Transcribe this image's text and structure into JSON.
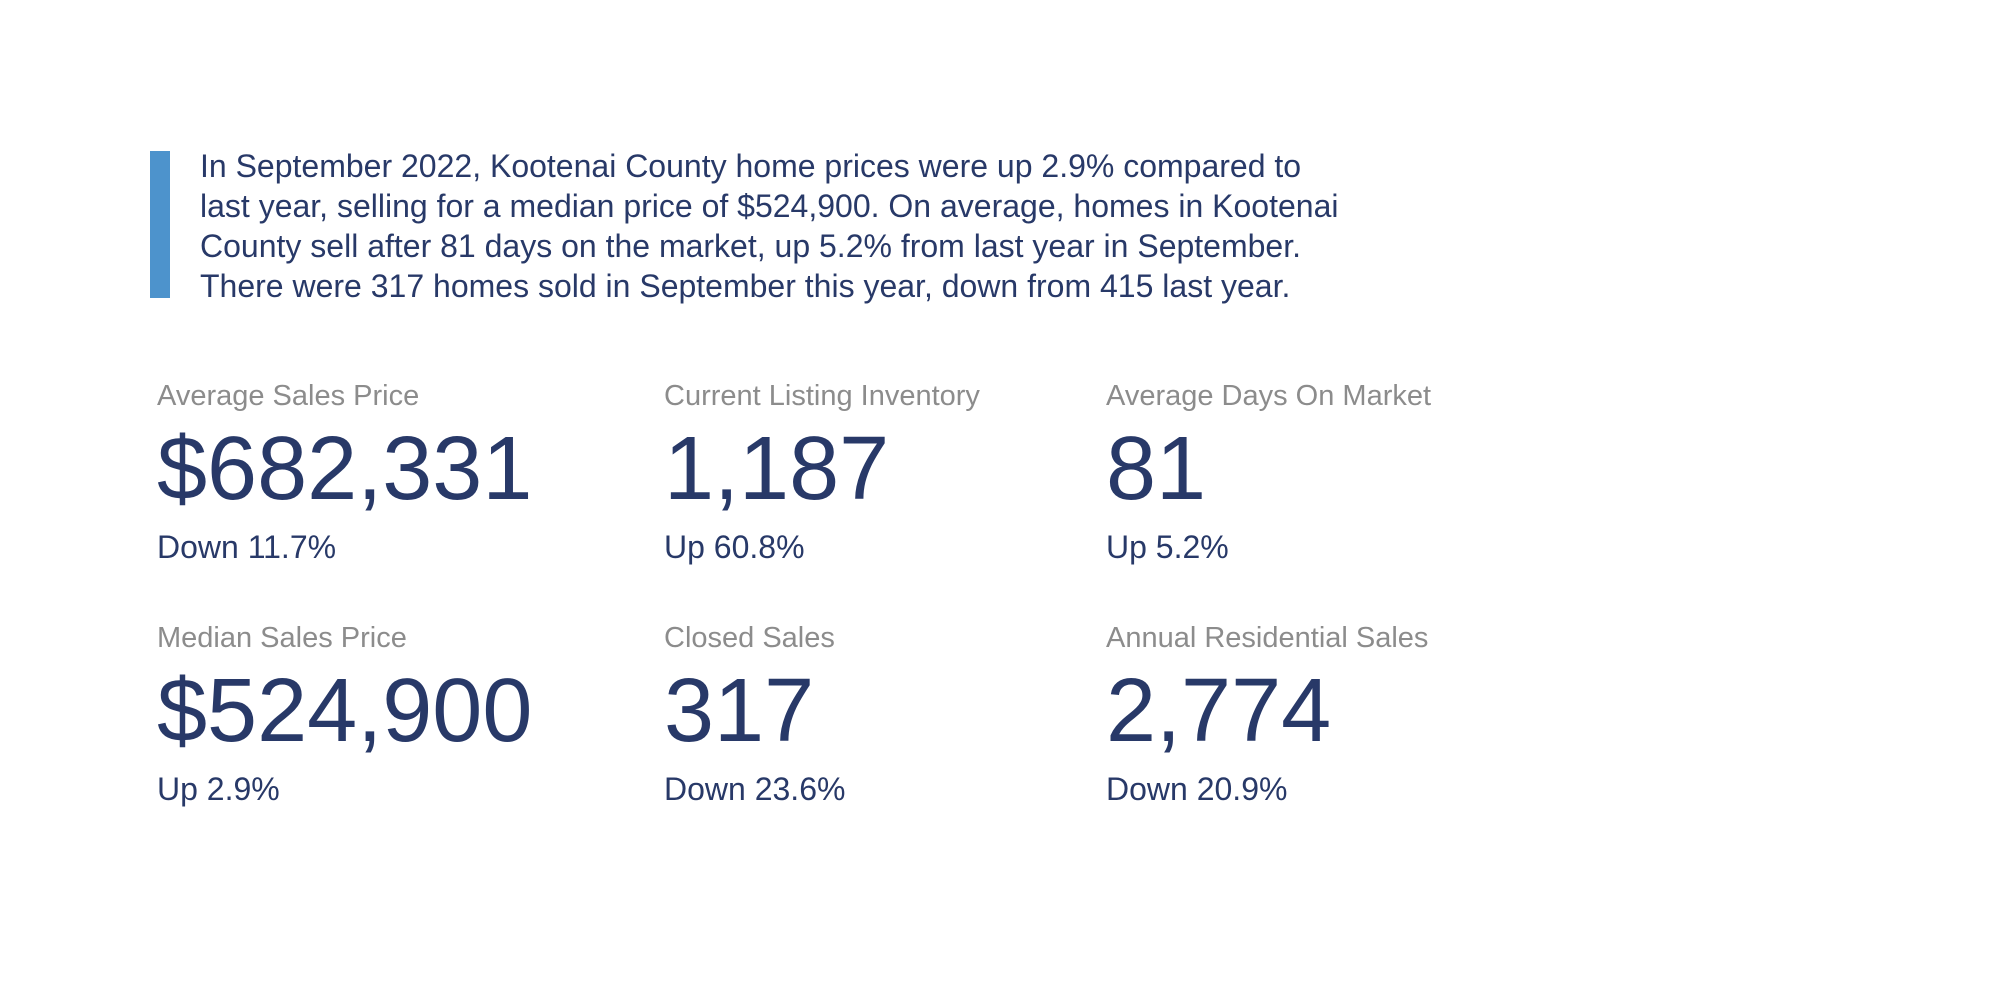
{
  "colors": {
    "background": "#ffffff",
    "accent_bar": "#4d93cc",
    "navy_text": "#283968",
    "label_gray": "#8c8c8c"
  },
  "quote": {
    "lines": [
      "In September 2022, Kootenai County home prices were up 2.9% compared to",
      "last year, selling for a median price of $524,900. On average, homes in Kootenai",
      "County sell after 81 days on the market, up 5.2% from last year in September.",
      "There were 317 homes sold in September this year, down from 415 last year."
    ]
  },
  "stats": {
    "items": [
      {
        "label": "Average Sales Price",
        "value": "$682,331",
        "change": "Down 11.7%"
      },
      {
        "label": "Current Listing Inventory",
        "value": "1,187",
        "change": "Up 60.8%"
      },
      {
        "label": "Average Days On Market",
        "value": "81",
        "change": "Up 5.2%"
      },
      {
        "label": "Median Sales Price",
        "value": "$524,900",
        "change": "Up 2.9%"
      },
      {
        "label": "Closed Sales",
        "value": "317",
        "change": "Down 23.6%"
      },
      {
        "label": "Annual Residential Sales",
        "value": "2,774",
        "change": "Down 20.9%"
      }
    ]
  }
}
